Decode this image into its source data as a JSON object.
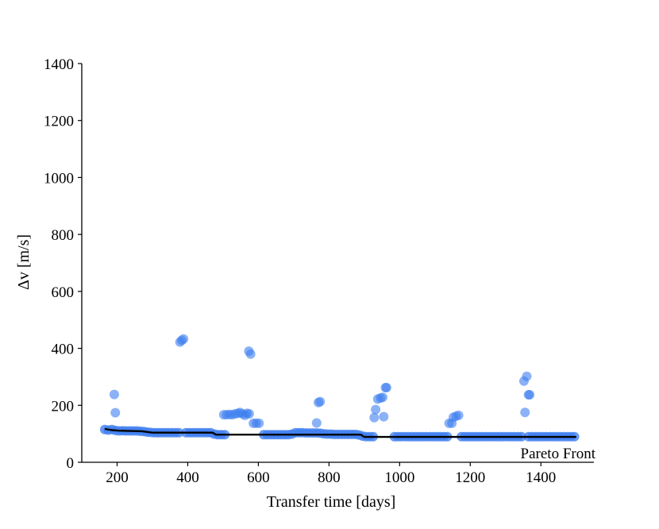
{
  "chart_data": {
    "type": "scatter",
    "title": "",
    "xlabel": "Transfer time [days]",
    "ylabel": "Δv [m/s]",
    "xlim": [
      100,
      1550
    ],
    "ylim": [
      0,
      1400
    ],
    "xticks": [
      200,
      400,
      600,
      800,
      1000,
      1200,
      1400
    ],
    "yticks": [
      0,
      200,
      400,
      600,
      800,
      1000,
      1200,
      1400
    ],
    "grid": false,
    "legend": {
      "placement": "bottom-right",
      "entries": [
        "Pareto Front"
      ]
    },
    "colors": {
      "points": "#3d7ef0",
      "front": "#000000",
      "axis": "#000000"
    },
    "points": {
      "baseline": [
        [
          165,
          115
        ],
        [
          175,
          113
        ],
        [
          185,
          115
        ],
        [
          195,
          112
        ],
        [
          205,
          110
        ],
        [
          215,
          111
        ],
        [
          225,
          110
        ],
        [
          235,
          110
        ],
        [
          245,
          110
        ],
        [
          255,
          110
        ],
        [
          265,
          109
        ],
        [
          275,
          108
        ],
        [
          285,
          106
        ],
        [
          295,
          105
        ],
        [
          305,
          104
        ],
        [
          315,
          104
        ],
        [
          325,
          104
        ],
        [
          335,
          104
        ],
        [
          345,
          104
        ],
        [
          355,
          104
        ],
        [
          365,
          104
        ],
        [
          375,
          104
        ],
        [
          395,
          104
        ],
        [
          405,
          104
        ],
        [
          415,
          104
        ],
        [
          425,
          104
        ],
        [
          435,
          104
        ],
        [
          445,
          104
        ],
        [
          455,
          104
        ],
        [
          465,
          104
        ],
        [
          475,
          99
        ],
        [
          485,
          97
        ],
        [
          495,
          97
        ],
        [
          505,
          97
        ],
        [
          615,
          97
        ],
        [
          625,
          97
        ],
        [
          635,
          97
        ],
        [
          645,
          97
        ],
        [
          655,
          97
        ],
        [
          665,
          97
        ],
        [
          675,
          97
        ],
        [
          685,
          97
        ],
        [
          695,
          99
        ],
        [
          705,
          104
        ],
        [
          715,
          104
        ],
        [
          725,
          104
        ],
        [
          735,
          103
        ],
        [
          745,
          103
        ],
        [
          755,
          103
        ],
        [
          765,
          103
        ],
        [
          775,
          102
        ],
        [
          785,
          100
        ],
        [
          795,
          99
        ],
        [
          805,
          99
        ],
        [
          815,
          98
        ],
        [
          825,
          98
        ],
        [
          835,
          98
        ],
        [
          845,
          98
        ],
        [
          855,
          98
        ],
        [
          865,
          98
        ],
        [
          875,
          98
        ],
        [
          885,
          96
        ],
        [
          895,
          92
        ],
        [
          905,
          90
        ],
        [
          915,
          90
        ],
        [
          925,
          90
        ],
        [
          985,
          90
        ],
        [
          995,
          90
        ],
        [
          1005,
          90
        ],
        [
          1015,
          90
        ],
        [
          1025,
          90
        ],
        [
          1035,
          90
        ],
        [
          1045,
          90
        ],
        [
          1055,
          90
        ],
        [
          1065,
          90
        ],
        [
          1075,
          90
        ],
        [
          1085,
          90
        ],
        [
          1095,
          90
        ],
        [
          1105,
          90
        ],
        [
          1115,
          90
        ],
        [
          1125,
          90
        ],
        [
          1135,
          90
        ],
        [
          1175,
          90
        ],
        [
          1185,
          90
        ],
        [
          1195,
          90
        ],
        [
          1205,
          90
        ],
        [
          1215,
          90
        ],
        [
          1225,
          90
        ],
        [
          1235,
          90
        ],
        [
          1245,
          90
        ],
        [
          1255,
          90
        ],
        [
          1265,
          90
        ],
        [
          1275,
          90
        ],
        [
          1285,
          90
        ],
        [
          1295,
          90
        ],
        [
          1305,
          90
        ],
        [
          1315,
          90
        ],
        [
          1325,
          90
        ],
        [
          1335,
          90
        ],
        [
          1345,
          90
        ],
        [
          1365,
          90
        ],
        [
          1375,
          90
        ],
        [
          1385,
          90
        ],
        [
          1395,
          90
        ],
        [
          1405,
          90
        ],
        [
          1415,
          90
        ],
        [
          1425,
          90
        ],
        [
          1435,
          90
        ],
        [
          1445,
          90
        ],
        [
          1455,
          90
        ],
        [
          1465,
          90
        ],
        [
          1475,
          90
        ],
        [
          1485,
          90
        ],
        [
          1495,
          90
        ]
      ],
      "scattered": [
        [
          192,
          238
        ],
        [
          195,
          174
        ],
        [
          378,
          422
        ],
        [
          383,
          428
        ],
        [
          388,
          433
        ],
        [
          502,
          167
        ],
        [
          510,
          167
        ],
        [
          518,
          168
        ],
        [
          526,
          167
        ],
        [
          534,
          170
        ],
        [
          542,
          172
        ],
        [
          548,
          175
        ],
        [
          555,
          170
        ],
        [
          562,
          165
        ],
        [
          568,
          172
        ],
        [
          574,
          170
        ],
        [
          573,
          390
        ],
        [
          578,
          380
        ],
        [
          586,
          137
        ],
        [
          594,
          137
        ],
        [
          602,
          137
        ],
        [
          765,
          138
        ],
        [
          770,
          210
        ],
        [
          775,
          213
        ],
        [
          928,
          157
        ],
        [
          932,
          185
        ],
        [
          938,
          222
        ],
        [
          946,
          226
        ],
        [
          952,
          228
        ],
        [
          955,
          160
        ],
        [
          960,
          262
        ],
        [
          963,
          262
        ],
        [
          1140,
          137
        ],
        [
          1148,
          137
        ],
        [
          1152,
          158
        ],
        [
          1160,
          162
        ],
        [
          1167,
          165
        ],
        [
          1352,
          285
        ],
        [
          1355,
          175
        ],
        [
          1360,
          302
        ],
        [
          1365,
          237
        ],
        [
          1368,
          237
        ]
      ]
    },
    "pareto_front": [
      [
        165,
        117
      ],
      [
        185,
        113
      ],
      [
        205,
        111
      ],
      [
        270,
        109
      ],
      [
        300,
        104
      ],
      [
        470,
        104
      ],
      [
        480,
        97
      ],
      [
        890,
        97
      ],
      [
        900,
        89
      ],
      [
        1500,
        89
      ]
    ]
  }
}
